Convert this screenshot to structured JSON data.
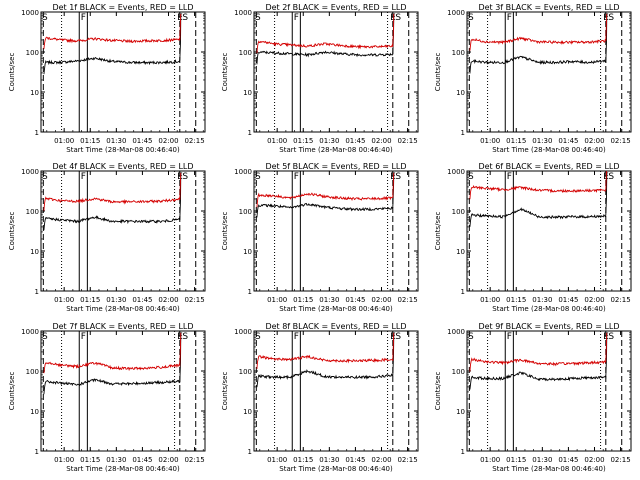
{
  "colors": {
    "events": "#000000",
    "lld": "#d40000",
    "axes": "#000000",
    "background": "#ffffff"
  },
  "axis": {
    "y_label": "Counts/sec",
    "x_label": "Start Time (28-Mar-08 00:46:40)",
    "y_scale": "log",
    "y_range": [
      1,
      1000
    ],
    "y_ticks": [
      {
        "value": 1,
        "label": "1"
      },
      {
        "value": 10,
        "label": "10"
      },
      {
        "value": 100,
        "label": "100"
      },
      {
        "value": 1000,
        "label": "1000"
      }
    ],
    "x_range": [
      "00:46:40",
      "02:21:00"
    ],
    "x_ticks": [
      {
        "time": "01:00",
        "label": "01:00"
      },
      {
        "time": "01:15",
        "label": "01:15"
      },
      {
        "time": "01:30",
        "label": "01:30"
      },
      {
        "time": "01:45",
        "label": "01:45"
      },
      {
        "time": "02:00",
        "label": "02:00"
      },
      {
        "time": "02:15",
        "label": "02:15"
      }
    ]
  },
  "chart_data": [
    {
      "type": "line",
      "title": "Det 1f BLACK = Events, RED = LLD",
      "markers": {
        "start": "S",
        "front": "F",
        "end": "E",
        "end2": "S"
      },
      "series": [
        {
          "name": "Events",
          "values": [
            55,
            55,
            60,
            70,
            58,
            55,
            54,
            55,
            58
          ]
        },
        {
          "name": "LLD",
          "values": [
            230,
            200,
            190,
            215,
            195,
            185,
            190,
            195,
            205
          ]
        }
      ]
    },
    {
      "type": "line",
      "title": "Det 2f BLACK = Events, RED = LLD",
      "markers": {
        "start": "S",
        "front": "F",
        "end": "E",
        "end2": "S"
      },
      "series": [
        {
          "name": "Events",
          "values": [
            100,
            95,
            90,
            85,
            100,
            90,
            85,
            85,
            88
          ]
        },
        {
          "name": "LLD",
          "values": [
            190,
            160,
            150,
            140,
            160,
            145,
            135,
            135,
            140
          ]
        }
      ]
    },
    {
      "type": "line",
      "title": "Det 3f BLACK = Events, RED = LLD",
      "markers": {
        "start": "S",
        "front": "F",
        "end": "E",
        "end2": "S"
      },
      "series": [
        {
          "name": "Events",
          "values": [
            60,
            55,
            55,
            75,
            55,
            55,
            58,
            55,
            60
          ]
        },
        {
          "name": "LLD",
          "values": [
            210,
            180,
            175,
            220,
            180,
            175,
            175,
            178,
            190
          ]
        }
      ]
    },
    {
      "type": "line",
      "title": "Det 4f BLACK = Events, RED = LLD",
      "markers": {
        "start": "S",
        "front": "F",
        "end": "E",
        "end2": "S"
      },
      "series": [
        {
          "name": "Events",
          "values": [
            65,
            60,
            55,
            70,
            55,
            55,
            55,
            55,
            62
          ]
        },
        {
          "name": "LLD",
          "values": [
            210,
            180,
            175,
            205,
            170,
            170,
            172,
            178,
            200
          ]
        }
      ]
    },
    {
      "type": "line",
      "title": "Det 5f BLACK = Events, RED = LLD",
      "markers": {
        "start": "S",
        "front": "F",
        "end": "E",
        "end2": "S"
      },
      "series": [
        {
          "name": "Events",
          "values": [
            140,
            135,
            120,
            150,
            125,
            115,
            110,
            112,
            118
          ]
        },
        {
          "name": "LLD",
          "values": [
            250,
            240,
            210,
            270,
            230,
            210,
            200,
            205,
            210
          ]
        }
      ]
    },
    {
      "type": "line",
      "title": "Det 6f BLACK = Events, RED = LLD",
      "markers": {
        "start": "S",
        "front": "F",
        "end": "E",
        "end2": "S"
      },
      "series": [
        {
          "name": "Events",
          "values": [
            80,
            75,
            72,
            110,
            72,
            70,
            72,
            72,
            75
          ]
        },
        {
          "name": "LLD",
          "values": [
            400,
            370,
            340,
            390,
            330,
            320,
            320,
            325,
            330
          ]
        }
      ]
    },
    {
      "type": "line",
      "title": "Det 7f BLACK = Events, RED = LLD",
      "markers": {
        "start": "S",
        "front": "F",
        "end": "E",
        "end2": "S"
      },
      "series": [
        {
          "name": "Events",
          "values": [
            55,
            50,
            45,
            60,
            48,
            48,
            50,
            52,
            55
          ]
        },
        {
          "name": "LLD",
          "values": [
            170,
            140,
            130,
            160,
            120,
            115,
            118,
            125,
            140
          ]
        }
      ]
    },
    {
      "type": "line",
      "title": "Det 8f BLACK = Events, RED = LLD",
      "markers": {
        "start": "S",
        "front": "F",
        "end": "E",
        "end2": "S"
      },
      "series": [
        {
          "name": "Events",
          "values": [
            75,
            70,
            70,
            100,
            72,
            70,
            70,
            72,
            78
          ]
        },
        {
          "name": "LLD",
          "values": [
            230,
            200,
            195,
            230,
            185,
            180,
            180,
            185,
            195
          ]
        }
      ]
    },
    {
      "type": "line",
      "title": "Det 9f BLACK = Events, RED = LLD",
      "markers": {
        "start": "S",
        "front": "F",
        "end": "E",
        "end2": "S"
      },
      "series": [
        {
          "name": "Events",
          "values": [
            70,
            65,
            65,
            90,
            62,
            62,
            65,
            68,
            70
          ]
        },
        {
          "name": "LLD",
          "values": [
            200,
            170,
            160,
            190,
            155,
            150,
            155,
            160,
            170
          ]
        }
      ]
    }
  ]
}
